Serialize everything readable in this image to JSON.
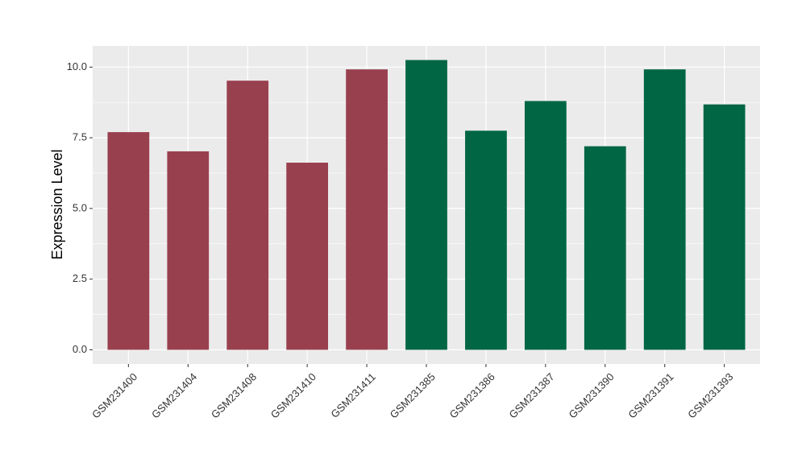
{
  "chart_data": {
    "type": "bar",
    "title": "",
    "xlabel": "",
    "ylabel": "Expression Level",
    "ylim": [
      -0.5,
      10.75
    ],
    "y_ticks": [
      0.0,
      2.5,
      5.0,
      7.5,
      10.0
    ],
    "y_tick_labels": [
      "0.0",
      "2.5",
      "5.0",
      "7.5",
      "10.0"
    ],
    "grid": true,
    "legend": "none",
    "categories": [
      "GSM231400",
      "GSM231404",
      "GSM231408",
      "GSM231410",
      "GSM231411",
      "GSM231385",
      "GSM231386",
      "GSM231387",
      "GSM231390",
      "GSM231391",
      "GSM231393"
    ],
    "values": [
      7.7,
      7.02,
      9.52,
      6.62,
      9.92,
      10.25,
      7.75,
      8.8,
      7.2,
      9.92,
      8.68
    ],
    "groups": [
      0,
      0,
      0,
      0,
      0,
      1,
      1,
      1,
      1,
      1,
      1
    ],
    "group_colors": [
      "#99404f",
      "#006644"
    ],
    "panel_background": "#ebebeb",
    "grid_color": "#ffffff"
  }
}
